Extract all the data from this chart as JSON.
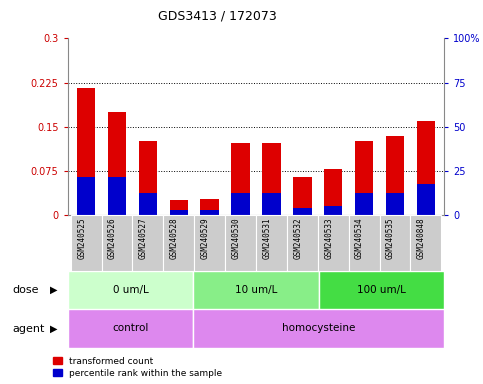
{
  "title": "GDS3413 / 172073",
  "samples": [
    "GSM240525",
    "GSM240526",
    "GSM240527",
    "GSM240528",
    "GSM240529",
    "GSM240530",
    "GSM240531",
    "GSM240532",
    "GSM240533",
    "GSM240534",
    "GSM240535",
    "GSM240848"
  ],
  "transformed_count": [
    0.215,
    0.175,
    0.125,
    0.025,
    0.028,
    0.122,
    0.122,
    0.065,
    0.078,
    0.125,
    0.135,
    0.16
  ],
  "percentile_rank_scaled": [
    0.065,
    0.065,
    0.038,
    0.008,
    0.008,
    0.038,
    0.038,
    0.012,
    0.015,
    0.038,
    0.038,
    0.052
  ],
  "ylim_left": [
    0,
    0.3
  ],
  "ylim_right": [
    0,
    100
  ],
  "yticks_left": [
    0,
    0.075,
    0.15,
    0.225,
    0.3
  ],
  "ytick_labels_left": [
    "0",
    "0.075",
    "0.15",
    "0.225",
    "0.3"
  ],
  "yticks_right": [
    0,
    25,
    50,
    75,
    100
  ],
  "ytick_labels_right": [
    "0",
    "25",
    "50",
    "75",
    "100%"
  ],
  "dotted_lines": [
    0.075,
    0.15,
    0.225
  ],
  "bar_color_red": "#dd0000",
  "bar_color_blue": "#0000cc",
  "dose_labels": [
    "0 um/L",
    "10 um/L",
    "100 um/L"
  ],
  "dose_ranges": [
    [
      0,
      4
    ],
    [
      4,
      8
    ],
    [
      8,
      12
    ]
  ],
  "dose_colors": [
    "#ccffcc",
    "#88ee88",
    "#44dd44"
  ],
  "agent_labels": [
    "control",
    "homocysteine"
  ],
  "agent_ranges": [
    [
      0,
      4
    ],
    [
      4,
      12
    ]
  ],
  "agent_color": "#dd88ee",
  "tick_color_left": "#cc0000",
  "tick_color_right": "#0000cc",
  "grid_color": "#000000",
  "bg_color": "#ffffff",
  "sample_bg_color": "#cccccc"
}
